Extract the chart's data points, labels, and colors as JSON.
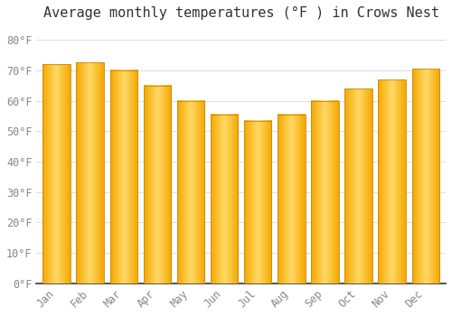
{
  "title": "Average monthly temperatures (°F ) in Crows Nest",
  "months": [
    "Jan",
    "Feb",
    "Mar",
    "Apr",
    "May",
    "Jun",
    "Jul",
    "Aug",
    "Sep",
    "Oct",
    "Nov",
    "Dec"
  ],
  "values": [
    72,
    72.5,
    70,
    65,
    60,
    55.5,
    53.5,
    55.5,
    60,
    64,
    67,
    70.5
  ],
  "bar_color_center": "#FFD966",
  "bar_color_edge": "#F5A800",
  "bar_edge_color": "#C8880A",
  "background_color": "#FFFFFF",
  "ylim": [
    0,
    85
  ],
  "yticks": [
    0,
    10,
    20,
    30,
    40,
    50,
    60,
    70,
    80
  ],
  "ytick_labels": [
    "0°F",
    "10°F",
    "20°F",
    "30°F",
    "40°F",
    "50°F",
    "60°F",
    "70°F",
    "80°F"
  ],
  "title_fontsize": 11,
  "tick_fontsize": 8.5,
  "grid_color": "#dddddd",
  "bar_width": 0.82
}
